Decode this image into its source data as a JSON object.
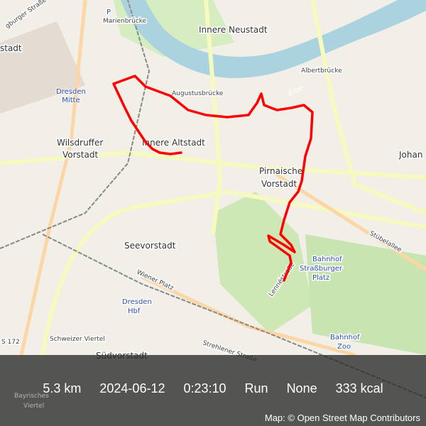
{
  "map": {
    "labels": {
      "marienbruecke": "Marienbrücke",
      "innere_neustadt": "Innere Neustadt",
      "albertbruecke": "Albertbrücke",
      "augustusbruecke": "Augustusbrücke",
      "elbe": "Elbe",
      "dresden_mitte": "Dresden Mitte",
      "wilsdruffer": "Wilsdruffer",
      "vorstadt": "Vorstadt",
      "innere_altstadt": "Innere Altstadt",
      "pirnaische": "Pirnaische",
      "pirnaische_vorstadt": "Vorstadt",
      "johann": "Johan",
      "seevorstadt": "Seevorstadt",
      "bahnhof": "Bahnhof",
      "strassburger": "Straßburger",
      "platz": "Platz",
      "stuebelallee": "Stübelallee",
      "wiener_platz": "Wiener Platz",
      "dresden": "Dresden",
      "hbf": "Hbf",
      "lennestrasse": "Lennéstraße",
      "schweizer_viertel": "Schweizer Viertel",
      "suedvorstadt": "Südvorstadt",
      "strehlener": "Strehlener Straße",
      "bahnhof_zoo_1": "Bahnhof",
      "bahnhof_zoo_2": "Zoo",
      "bayrisches": "Bayrisches",
      "viertel": "Viertel",
      "stadt": "stadt",
      "burger_strasse": "gburger Straße",
      "s172": "S 172",
      "parking": "P"
    },
    "route_color": "#ff0000",
    "river_color": "#aad3df"
  },
  "stats": {
    "distance": "5.3 km",
    "date": "2024-06-12",
    "duration": "0:23:10",
    "activity": "Run",
    "gear": "None",
    "calories": "333 kcal"
  },
  "attribution": "Map: © Open Street Map Contributors"
}
